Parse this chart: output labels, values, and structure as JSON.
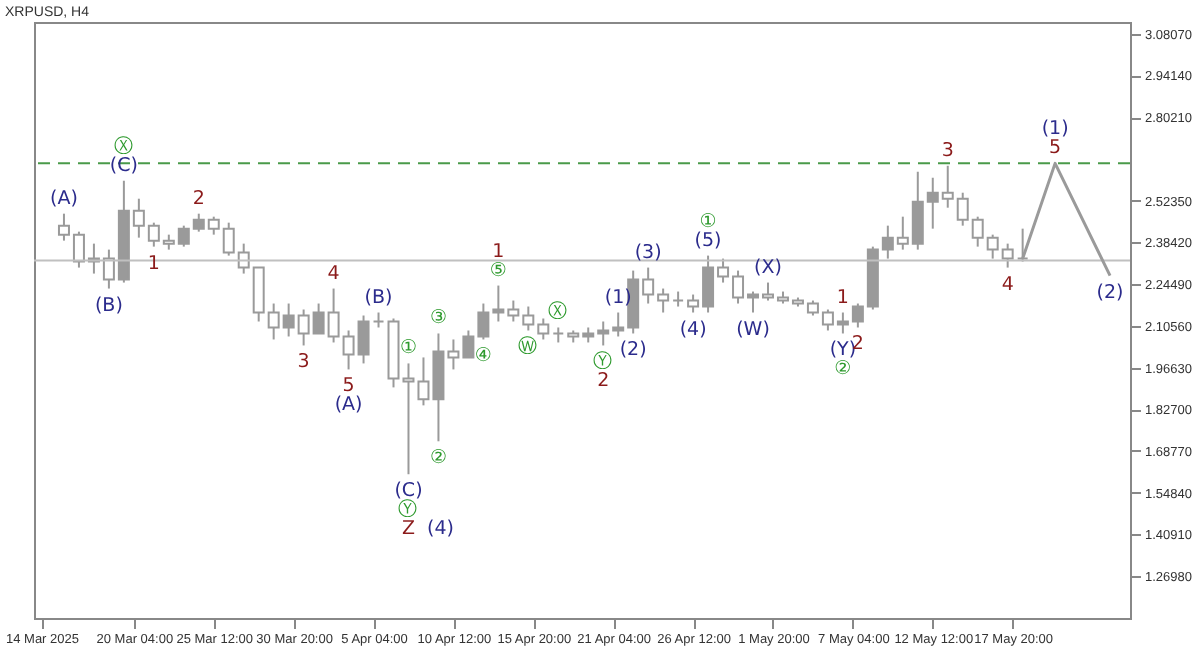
{
  "chart_data": {
    "type": "candlestick",
    "title": "XRPUSD, H4",
    "color": "#9a9a9a",
    "x": [
      "2025-03-15T12:00",
      "2025-03-16T12:00",
      "2025-03-17T12:00",
      "2025-03-18T12:00",
      "2025-03-19T12:00",
      "2025-03-20T12:00",
      "2025-03-21T12:00",
      "2025-03-22T12:00",
      "2025-03-23T12:00",
      "2025-03-24T12:00",
      "2025-03-25T12:00",
      "2025-03-26T12:00",
      "2025-03-27T12:00",
      "2025-03-28T12:00",
      "2025-03-29T12:00",
      "2025-03-30T12:00",
      "2025-03-31T12:00",
      "2025-04-01T12:00",
      "2025-04-02T12:00",
      "2025-04-03T12:00",
      "2025-04-04T12:00",
      "2025-04-05T12:00",
      "2025-04-06T12:00",
      "2025-04-07T12:00",
      "2025-04-08T12:00",
      "2025-04-09T12:00",
      "2025-04-10T12:00",
      "2025-04-11T12:00",
      "2025-04-12T12:00",
      "2025-04-13T12:00",
      "2025-04-14T12:00",
      "2025-04-15T12:00",
      "2025-04-16T12:00",
      "2025-04-17T12:00",
      "2025-04-18T12:00",
      "2025-04-19T12:00",
      "2025-04-20T12:00",
      "2025-04-21T12:00",
      "2025-04-22T12:00",
      "2025-04-23T12:00",
      "2025-04-24T12:00",
      "2025-04-25T12:00",
      "2025-04-26T12:00",
      "2025-04-27T12:00",
      "2025-04-28T12:00",
      "2025-04-29T12:00",
      "2025-04-30T12:00",
      "2025-05-01T12:00",
      "2025-05-02T12:00",
      "2025-05-03T12:00",
      "2025-05-04T12:00",
      "2025-05-05T12:00",
      "2025-05-06T12:00",
      "2025-05-07T12:00",
      "2025-05-08T12:00",
      "2025-05-09T12:00",
      "2025-05-10T12:00",
      "2025-05-11T12:00",
      "2025-05-12T12:00",
      "2025-05-13T12:00",
      "2025-05-14T12:00",
      "2025-05-15T12:00",
      "2025-05-16T12:00",
      "2025-05-17T12:00",
      "2025-05-18T12:00"
    ],
    "ohlc": [
      [
        2.44,
        2.48,
        2.39,
        2.41
      ],
      [
        2.41,
        2.42,
        2.3,
        2.32
      ],
      [
        2.32,
        2.38,
        2.28,
        2.33
      ],
      [
        2.33,
        2.36,
        2.23,
        2.26
      ],
      [
        2.26,
        2.59,
        2.25,
        2.49
      ],
      [
        2.49,
        2.53,
        2.4,
        2.44
      ],
      [
        2.44,
        2.45,
        2.37,
        2.39
      ],
      [
        2.39,
        2.41,
        2.36,
        2.38
      ],
      [
        2.38,
        2.44,
        2.37,
        2.43
      ],
      [
        2.43,
        2.48,
        2.42,
        2.46
      ],
      [
        2.46,
        2.47,
        2.41,
        2.43
      ],
      [
        2.43,
        2.45,
        2.34,
        2.35
      ],
      [
        2.35,
        2.38,
        2.28,
        2.3
      ],
      [
        2.3,
        2.3,
        2.12,
        2.15
      ],
      [
        2.15,
        2.18,
        2.06,
        2.1
      ],
      [
        2.1,
        2.18,
        2.07,
        2.14
      ],
      [
        2.14,
        2.16,
        2.04,
        2.08
      ],
      [
        2.08,
        2.18,
        2.08,
        2.15
      ],
      [
        2.15,
        2.23,
        2.05,
        2.07
      ],
      [
        2.07,
        2.09,
        1.96,
        2.01
      ],
      [
        2.01,
        2.14,
        1.98,
        2.12
      ],
      [
        2.12,
        2.15,
        2.1,
        2.12
      ],
      [
        2.12,
        2.13,
        1.9,
        1.93
      ],
      [
        1.93,
        1.98,
        1.61,
        1.92
      ],
      [
        1.92,
        2.0,
        1.84,
        1.86
      ],
      [
        1.86,
        2.08,
        1.72,
        2.02
      ],
      [
        2.02,
        2.06,
        1.96,
        2.0
      ],
      [
        2.0,
        2.09,
        2.0,
        2.07
      ],
      [
        2.07,
        2.18,
        2.06,
        2.15
      ],
      [
        2.15,
        2.24,
        2.12,
        2.16
      ],
      [
        2.16,
        2.19,
        2.12,
        2.14
      ],
      [
        2.14,
        2.17,
        2.09,
        2.11
      ],
      [
        2.11,
        2.13,
        2.06,
        2.08
      ],
      [
        2.08,
        2.1,
        2.05,
        2.08
      ],
      [
        2.08,
        2.09,
        2.05,
        2.07
      ],
      [
        2.07,
        2.1,
        2.05,
        2.08
      ],
      [
        2.08,
        2.12,
        2.04,
        2.09
      ],
      [
        2.09,
        2.15,
        2.07,
        2.1
      ],
      [
        2.1,
        2.29,
        2.08,
        2.26
      ],
      [
        2.26,
        2.3,
        2.18,
        2.21
      ],
      [
        2.21,
        2.23,
        2.15,
        2.19
      ],
      [
        2.19,
        2.22,
        2.17,
        2.19
      ],
      [
        2.19,
        2.21,
        2.15,
        2.17
      ],
      [
        2.17,
        2.34,
        2.15,
        2.3
      ],
      [
        2.3,
        2.33,
        2.25,
        2.27
      ],
      [
        2.27,
        2.29,
        2.18,
        2.2
      ],
      [
        2.2,
        2.22,
        2.15,
        2.21
      ],
      [
        2.21,
        2.25,
        2.19,
        2.2
      ],
      [
        2.2,
        2.22,
        2.18,
        2.19
      ],
      [
        2.19,
        2.2,
        2.17,
        2.18
      ],
      [
        2.18,
        2.19,
        2.14,
        2.15
      ],
      [
        2.15,
        2.16,
        2.09,
        2.11
      ],
      [
        2.11,
        2.15,
        2.08,
        2.12
      ],
      [
        2.12,
        2.18,
        2.1,
        2.17
      ],
      [
        2.17,
        2.37,
        2.16,
        2.36
      ],
      [
        2.36,
        2.44,
        2.33,
        2.4
      ],
      [
        2.4,
        2.47,
        2.36,
        2.38
      ],
      [
        2.38,
        2.62,
        2.36,
        2.52
      ],
      [
        2.52,
        2.6,
        2.43,
        2.55
      ],
      [
        2.55,
        2.64,
        2.5,
        2.53
      ],
      [
        2.53,
        2.55,
        2.44,
        2.46
      ],
      [
        2.46,
        2.47,
        2.37,
        2.4
      ],
      [
        2.4,
        2.41,
        2.33,
        2.36
      ],
      [
        2.36,
        2.38,
        2.3,
        2.33
      ],
      [
        2.33,
        2.43,
        2.32,
        2.33
      ]
    ],
    "series": [
      {
        "type": "line",
        "color": "#9a9a9a",
        "x": [
          "2025-05-18T12:00",
          "2025-05-20T16:00",
          "2025-05-24T08:00"
        ],
        "values": [
          2.33,
          2.648,
          2.273
        ]
      }
    ],
    "xlim": [
      "2025-03-13T12:00",
      "2025-05-25T16:00"
    ],
    "xticks": [
      {
        "value": "2025-03-14T00:00",
        "label": "14 Mar 2025"
      },
      {
        "value": "2025-03-20T04:00",
        "label": "20 Mar 04:00"
      },
      {
        "value": "2025-03-25T12:00",
        "label": "25 Mar 12:00"
      },
      {
        "value": "2025-03-30T20:00",
        "label": "30 Mar 20:00"
      },
      {
        "value": "2025-04-05T04:00",
        "label": "5 Apr 04:00"
      },
      {
        "value": "2025-04-10T12:00",
        "label": "10 Apr 12:00"
      },
      {
        "value": "2025-04-15T20:00",
        "label": "15 Apr 20:00"
      },
      {
        "value": "2025-04-21T04:00",
        "label": "21 Apr 04:00"
      },
      {
        "value": "2025-04-26T12:00",
        "label": "26 Apr 12:00"
      },
      {
        "value": "2025-05-01T20:00",
        "label": "1 May 20:00"
      },
      {
        "value": "2025-05-07T04:00",
        "label": "7 May 04:00"
      },
      {
        "value": "2025-05-12T12:00",
        "label": "12 May 12:00"
      },
      {
        "value": "2025-05-17T20:00",
        "label": "17 May 20:00"
      }
    ],
    "ylim": [
      1.13,
      3.12
    ],
    "yticks": [
      {
        "value": 1.2698,
        "label": "1.26980"
      },
      {
        "value": 1.4091,
        "label": "1.40910"
      },
      {
        "value": 1.5484,
        "label": "1.54840"
      },
      {
        "value": 1.6877,
        "label": "1.68770"
      },
      {
        "value": 1.827,
        "label": "1.82700"
      },
      {
        "value": 1.9663,
        "label": "1.96630"
      },
      {
        "value": 2.1056,
        "label": "2.10560"
      },
      {
        "value": 2.2449,
        "label": "2.24490"
      },
      {
        "value": 2.3842,
        "label": "2.38420"
      },
      {
        "value": 2.5235,
        "label": "2.52350"
      },
      {
        "value": 2.8021,
        "label": "2.80210"
      },
      {
        "value": 2.9414,
        "label": "2.94140"
      },
      {
        "value": 3.0807,
        "label": "3.08070"
      }
    ],
    "ref_lines": [
      {
        "axis": "y",
        "value": 2.648,
        "color": "#4a9a4a",
        "line_style": "dashed"
      },
      {
        "axis": "y",
        "value": 2.324,
        "color": "#c0c0c0",
        "line_style": "solid"
      }
    ],
    "annotations": [
      {
        "text": "(A)",
        "x": "2025-03-15T12:00",
        "y": 2.48
      },
      {
        "text": "(C)",
        "x": "2025-03-19T12:00",
        "y": 2.59
      },
      {
        "text": "Ⓧ",
        "x": "2025-03-19T12:00",
        "y": 2.59
      },
      {
        "text": "(B)",
        "x": "2025-03-18T12:00",
        "y": 2.23
      },
      {
        "text": "1",
        "x": "2025-03-21T12:00",
        "y": 2.37
      },
      {
        "text": "2",
        "x": "2025-03-24T12:00",
        "y": 2.48
      },
      {
        "text": "3",
        "x": "2025-03-31T12:00",
        "y": 2.04
      },
      {
        "text": "4",
        "x": "2025-04-02T12:00",
        "y": 2.23
      },
      {
        "text": "5",
        "x": "2025-04-03T12:00",
        "y": 1.96
      },
      {
        "text": "(A)",
        "x": "2025-04-03T12:00",
        "y": 1.96
      },
      {
        "text": "(B)",
        "x": "2025-04-05T12:00",
        "y": 2.15
      },
      {
        "text": "①",
        "x": "2025-04-07T12:00",
        "y": 1.98
      },
      {
        "text": "(C)",
        "x": "2025-04-07T12:00",
        "y": 1.61
      },
      {
        "text": "Ⓨ",
        "x": "2025-04-07T12:00",
        "y": 1.61
      },
      {
        "text": "Z",
        "x": "2025-04-07T12:00",
        "y": 1.61
      },
      {
        "text": "(4)",
        "x": "2025-04-07T12:00",
        "y": 1.61
      },
      {
        "text": "②",
        "x": "2025-04-09T12:00",
        "y": 1.72
      },
      {
        "text": "③",
        "x": "2025-04-09T12:00",
        "y": 2.08
      },
      {
        "text": "④",
        "x": "2025-04-12T12:00",
        "y": 2.06
      },
      {
        "text": "⑤",
        "x": "2025-04-13T12:00",
        "y": 2.24
      },
      {
        "text": "1",
        "x": "2025-04-13T12:00",
        "y": 2.24
      },
      {
        "text": "Ⓦ",
        "x": "2025-04-15T12:00",
        "y": 2.09
      },
      {
        "text": "Ⓧ",
        "x": "2025-04-17T12:00",
        "y": 2.1
      },
      {
        "text": "Ⓨ",
        "x": "2025-04-20T12:00",
        "y": 2.04
      },
      {
        "text": "2",
        "x": "2025-04-20T12:00",
        "y": 2.04
      },
      {
        "text": "(1)",
        "x": "2025-04-21T12:00",
        "y": 2.15
      },
      {
        "text": "(2)",
        "x": "2025-04-22T12:00",
        "y": 2.08
      },
      {
        "text": "(3)",
        "x": "2025-04-23T12:00",
        "y": 2.3
      },
      {
        "text": "(4)",
        "x": "2025-04-26T12:00",
        "y": 2.15
      },
      {
        "text": "(5)",
        "x": "2025-04-27T12:00",
        "y": 2.34
      },
      {
        "text": "①",
        "x": "2025-04-27T12:00",
        "y": 2.34
      },
      {
        "text": "(W)",
        "x": "2025-04-30T12:00",
        "y": 2.15
      },
      {
        "text": "(X)",
        "x": "2025-05-01T12:00",
        "y": 2.25
      },
      {
        "text": "1",
        "x": "2025-05-06T12:00",
        "y": 2.15
      },
      {
        "text": "(Y)",
        "x": "2025-05-06T12:00",
        "y": 2.08
      },
      {
        "text": "②",
        "x": "2025-05-06T12:00",
        "y": 2.08
      },
      {
        "text": "2",
        "x": "2025-05-07T12:00",
        "y": 2.1
      },
      {
        "text": "3",
        "x": "2025-05-13T12:00",
        "y": 2.64
      },
      {
        "text": "4",
        "x": "2025-05-17T12:00",
        "y": 2.3
      },
      {
        "text": "5",
        "x": "2025-05-20T16:00",
        "y": 2.648
      },
      {
        "text": "(1)",
        "x": "2025-05-20T16:00",
        "y": 2.648
      },
      {
        "text": "(2)",
        "x": "2025-05-24T08:00",
        "y": 2.273
      }
    ]
  }
}
